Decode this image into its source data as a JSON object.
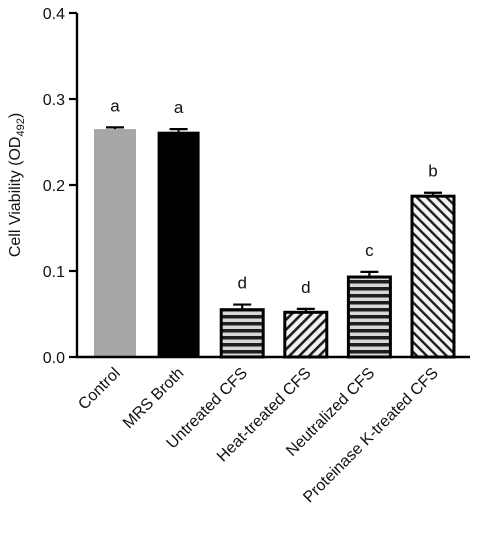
{
  "chart_data": {
    "type": "bar",
    "title": "",
    "xlabel": "",
    "ylabel": "Cell Viability (OD",
    "ylabel_subscript": "492",
    "ylabel_close": ")",
    "ylim": [
      0,
      0.4
    ],
    "yticks": [
      0.0,
      0.1,
      0.2,
      0.3,
      0.4
    ],
    "ytick_labels": [
      "0.0",
      "0.1",
      "0.2",
      "0.3",
      "0.4"
    ],
    "categories": [
      "Control",
      "MRS Broth",
      "Untreated CFS",
      "Heat-treated CFS",
      "Neutralized CFS",
      "Proteinase K-treated CFS"
    ],
    "values": [
      0.265,
      0.262,
      0.055,
      0.052,
      0.093,
      0.187
    ],
    "errors": [
      0.002,
      0.003,
      0.006,
      0.004,
      0.006,
      0.004
    ],
    "significance_letters": [
      "a",
      "a",
      "d",
      "d",
      "c",
      "b"
    ],
    "fills": [
      "solid-gray",
      "solid-black",
      "horizontal-stripes",
      "diagonal-stripes-back",
      "horizontal-stripes",
      "diagonal-stripes-forward"
    ],
    "colors": {
      "control": "#a6a6a8",
      "mrs": "#000000",
      "stripe_dark": "#1e1e1e",
      "stripe_light": "#d8d8d8",
      "axis": "#000000"
    },
    "grid": false,
    "legend": "none"
  }
}
